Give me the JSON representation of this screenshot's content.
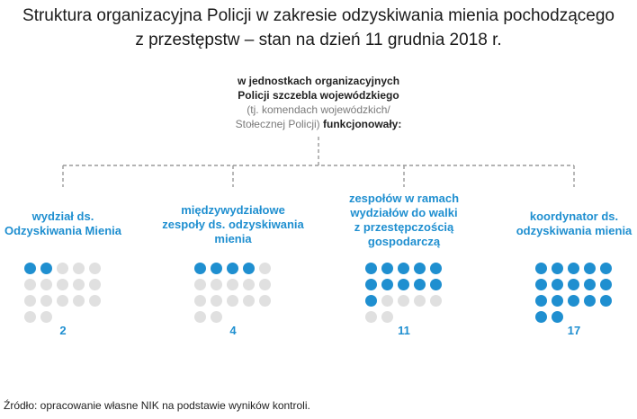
{
  "title_line1": "Struktura organizacyjna Policji w zakresie odzyskiwania mienia pochodzącego",
  "title_line2": "z przestępstw – stan na dzień 11 grudnia 2018 r.",
  "intro": {
    "line1": "w jednostkach organizacyjnych",
    "line2": "Policji szczebla wojewódzkiego",
    "line3": "(tj. komendach wojewódzkich/",
    "line4_gray": "Stołecznej Policji)",
    "line4_bold": "funkcjonowały:"
  },
  "categories": [
    {
      "label_lines": [
        "wydział ds.",
        "Odzyskiwania Mienia"
      ],
      "count": 2,
      "total": 17,
      "count_label": "2"
    },
    {
      "label_lines": [
        "międzywydziałowe",
        "zespoły ds. odzyskiwania",
        "mienia"
      ],
      "count": 4,
      "total": 17,
      "count_label": "4"
    },
    {
      "label_lines": [
        "zespołów w ramach",
        "wydziałów do walki",
        "z przestępczością",
        "gospodarczą"
      ],
      "count": 11,
      "total": 17,
      "count_label": "11"
    },
    {
      "label_lines": [
        "koordynator ds.",
        "odzyskiwania mienia"
      ],
      "count": 17,
      "total": 17,
      "count_label": "17"
    }
  ],
  "source": "Źródło: opracowanie własne NIK na podstawie wyników kontroli.",
  "colors": {
    "accent": "#1f8fd0",
    "inactive": "#e0e0e0",
    "connector": "#9a9a9a"
  }
}
